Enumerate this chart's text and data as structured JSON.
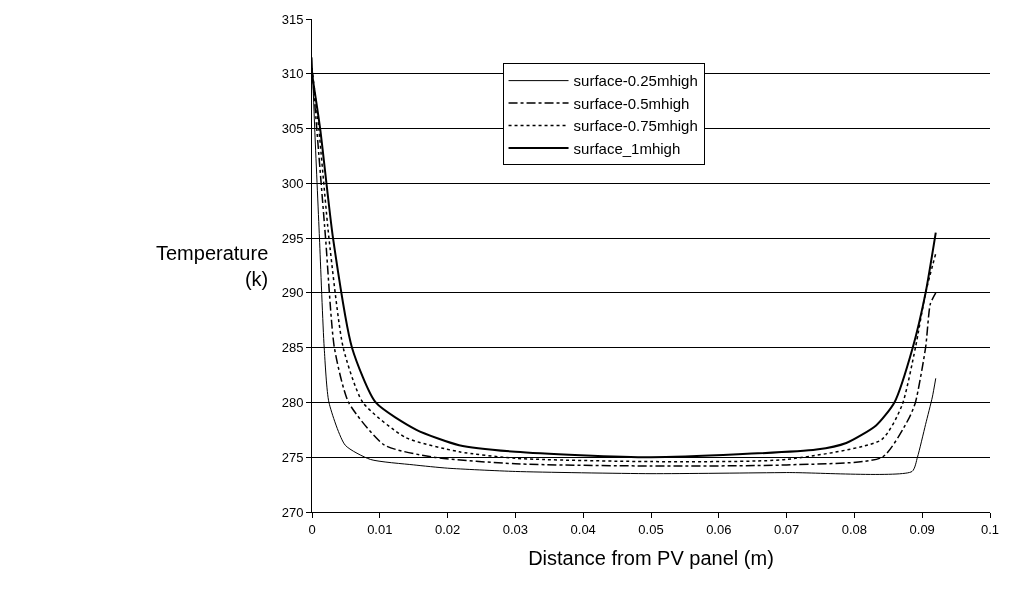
{
  "chart_data": {
    "type": "line",
    "xlabel": "Distance from PV panel (m)",
    "ylabel": "Temperature\n(k)",
    "xlim": [
      0,
      0.1
    ],
    "xticks": [
      0,
      0.01,
      0.02,
      0.03,
      0.04,
      0.05,
      0.06,
      0.07,
      0.08,
      0.09,
      0.1
    ],
    "ylim": [
      270,
      315
    ],
    "yticks": [
      270,
      275,
      280,
      285,
      290,
      295,
      300,
      305,
      310,
      315
    ],
    "grid": "y",
    "legend": "top",
    "marker": "none",
    "series": [
      {
        "name": "surface-0.25mhigh",
        "color": "#000000",
        "line_style": "solid",
        "x": [
          0,
          0.0004,
          0.0011,
          0.0018,
          0.0025,
          0.0049,
          0.0086,
          0.015,
          0.02,
          0.03,
          0.05,
          0.07,
          0.0885,
          0.0893,
          0.0905,
          0.0915,
          0.092
        ],
        "values": [
          311.5,
          305,
          295,
          285,
          280,
          276.1,
          274.8,
          274.3,
          274,
          273.7,
          273.5,
          273.6,
          273.7,
          275,
          278,
          280.5,
          282.2
        ]
      },
      {
        "name": "surface-0.5mhigh",
        "color": "#000000",
        "line_style": "dashdot",
        "x": [
          0,
          0.0007,
          0.002,
          0.0033,
          0.0054,
          0.0107,
          0.018,
          0.03,
          0.05,
          0.07,
          0.0841,
          0.088,
          0.089,
          0.0905,
          0.0912,
          0.092
        ],
        "values": [
          310.5,
          305,
          295,
          285,
          280,
          276.1,
          275,
          274.4,
          274.2,
          274.3,
          275,
          278.5,
          280,
          285,
          289,
          290
        ]
      },
      {
        "name": "surface-0.75mhigh",
        "color": "#000000",
        "line_style": "dotted",
        "x": [
          0,
          0.001,
          0.0025,
          0.0046,
          0.0075,
          0.0138,
          0.0217,
          0.03,
          0.05,
          0.07,
          0.084,
          0.087,
          0.089,
          0.0905,
          0.092
        ],
        "values": [
          310.5,
          305,
          295,
          285,
          280,
          276.8,
          275.5,
          274.9,
          274.6,
          274.8,
          276.6,
          279.7,
          285,
          290,
          293.6
        ]
      },
      {
        "name": "surface_1mhigh",
        "color": "#000000",
        "line_style": "solid",
        "x": [
          0,
          0.0012,
          0.0031,
          0.0059,
          0.0094,
          0.0154,
          0.0217,
          0.03,
          0.05,
          0.0744,
          0.0788,
          0.0832,
          0.0859,
          0.0886,
          0.0905,
          0.092
        ],
        "values": [
          310,
          305,
          295,
          285,
          280,
          277.5,
          276.1,
          275.5,
          275,
          275.7,
          276.3,
          277.9,
          280,
          285,
          290,
          295.5
        ]
      }
    ]
  }
}
